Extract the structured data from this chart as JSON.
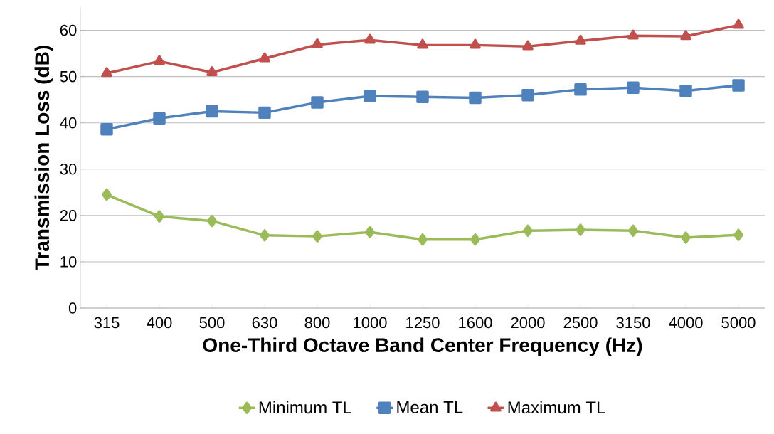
{
  "chart_data": {
    "type": "line",
    "xlabel": "One-Third Octave Band Center Frequency (Hz)",
    "ylabel": "Transmission Loss (dB)",
    "categories": [
      "315",
      "400",
      "500",
      "630",
      "800",
      "1000",
      "1250",
      "1600",
      "2000",
      "2500",
      "3150",
      "4000",
      "5000"
    ],
    "series": [
      {
        "name": "Minimum TL",
        "color": "#9bbb59",
        "marker": "diamond",
        "values": [
          24.5,
          19.8,
          18.8,
          15.7,
          15.5,
          16.4,
          14.8,
          14.8,
          16.7,
          16.9,
          16.7,
          15.2,
          15.8
        ]
      },
      {
        "name": "Mean TL",
        "color": "#4f81bd",
        "marker": "square",
        "values": [
          38.6,
          41.0,
          42.5,
          42.2,
          44.4,
          45.8,
          45.6,
          45.4,
          46.0,
          47.2,
          47.6,
          46.9,
          48.1
        ]
      },
      {
        "name": "Maximum TL",
        "color": "#c0504d",
        "marker": "triangle",
        "values": [
          50.7,
          53.3,
          50.9,
          53.9,
          56.9,
          57.9,
          56.8,
          56.8,
          56.5,
          57.7,
          58.8,
          58.7,
          61.1
        ]
      }
    ],
    "ylim": [
      0,
      65
    ],
    "yticks": [
      0,
      10,
      20,
      30,
      40,
      50,
      60
    ],
    "grid": "y",
    "legend": "bottom",
    "line_style": "solid"
  }
}
